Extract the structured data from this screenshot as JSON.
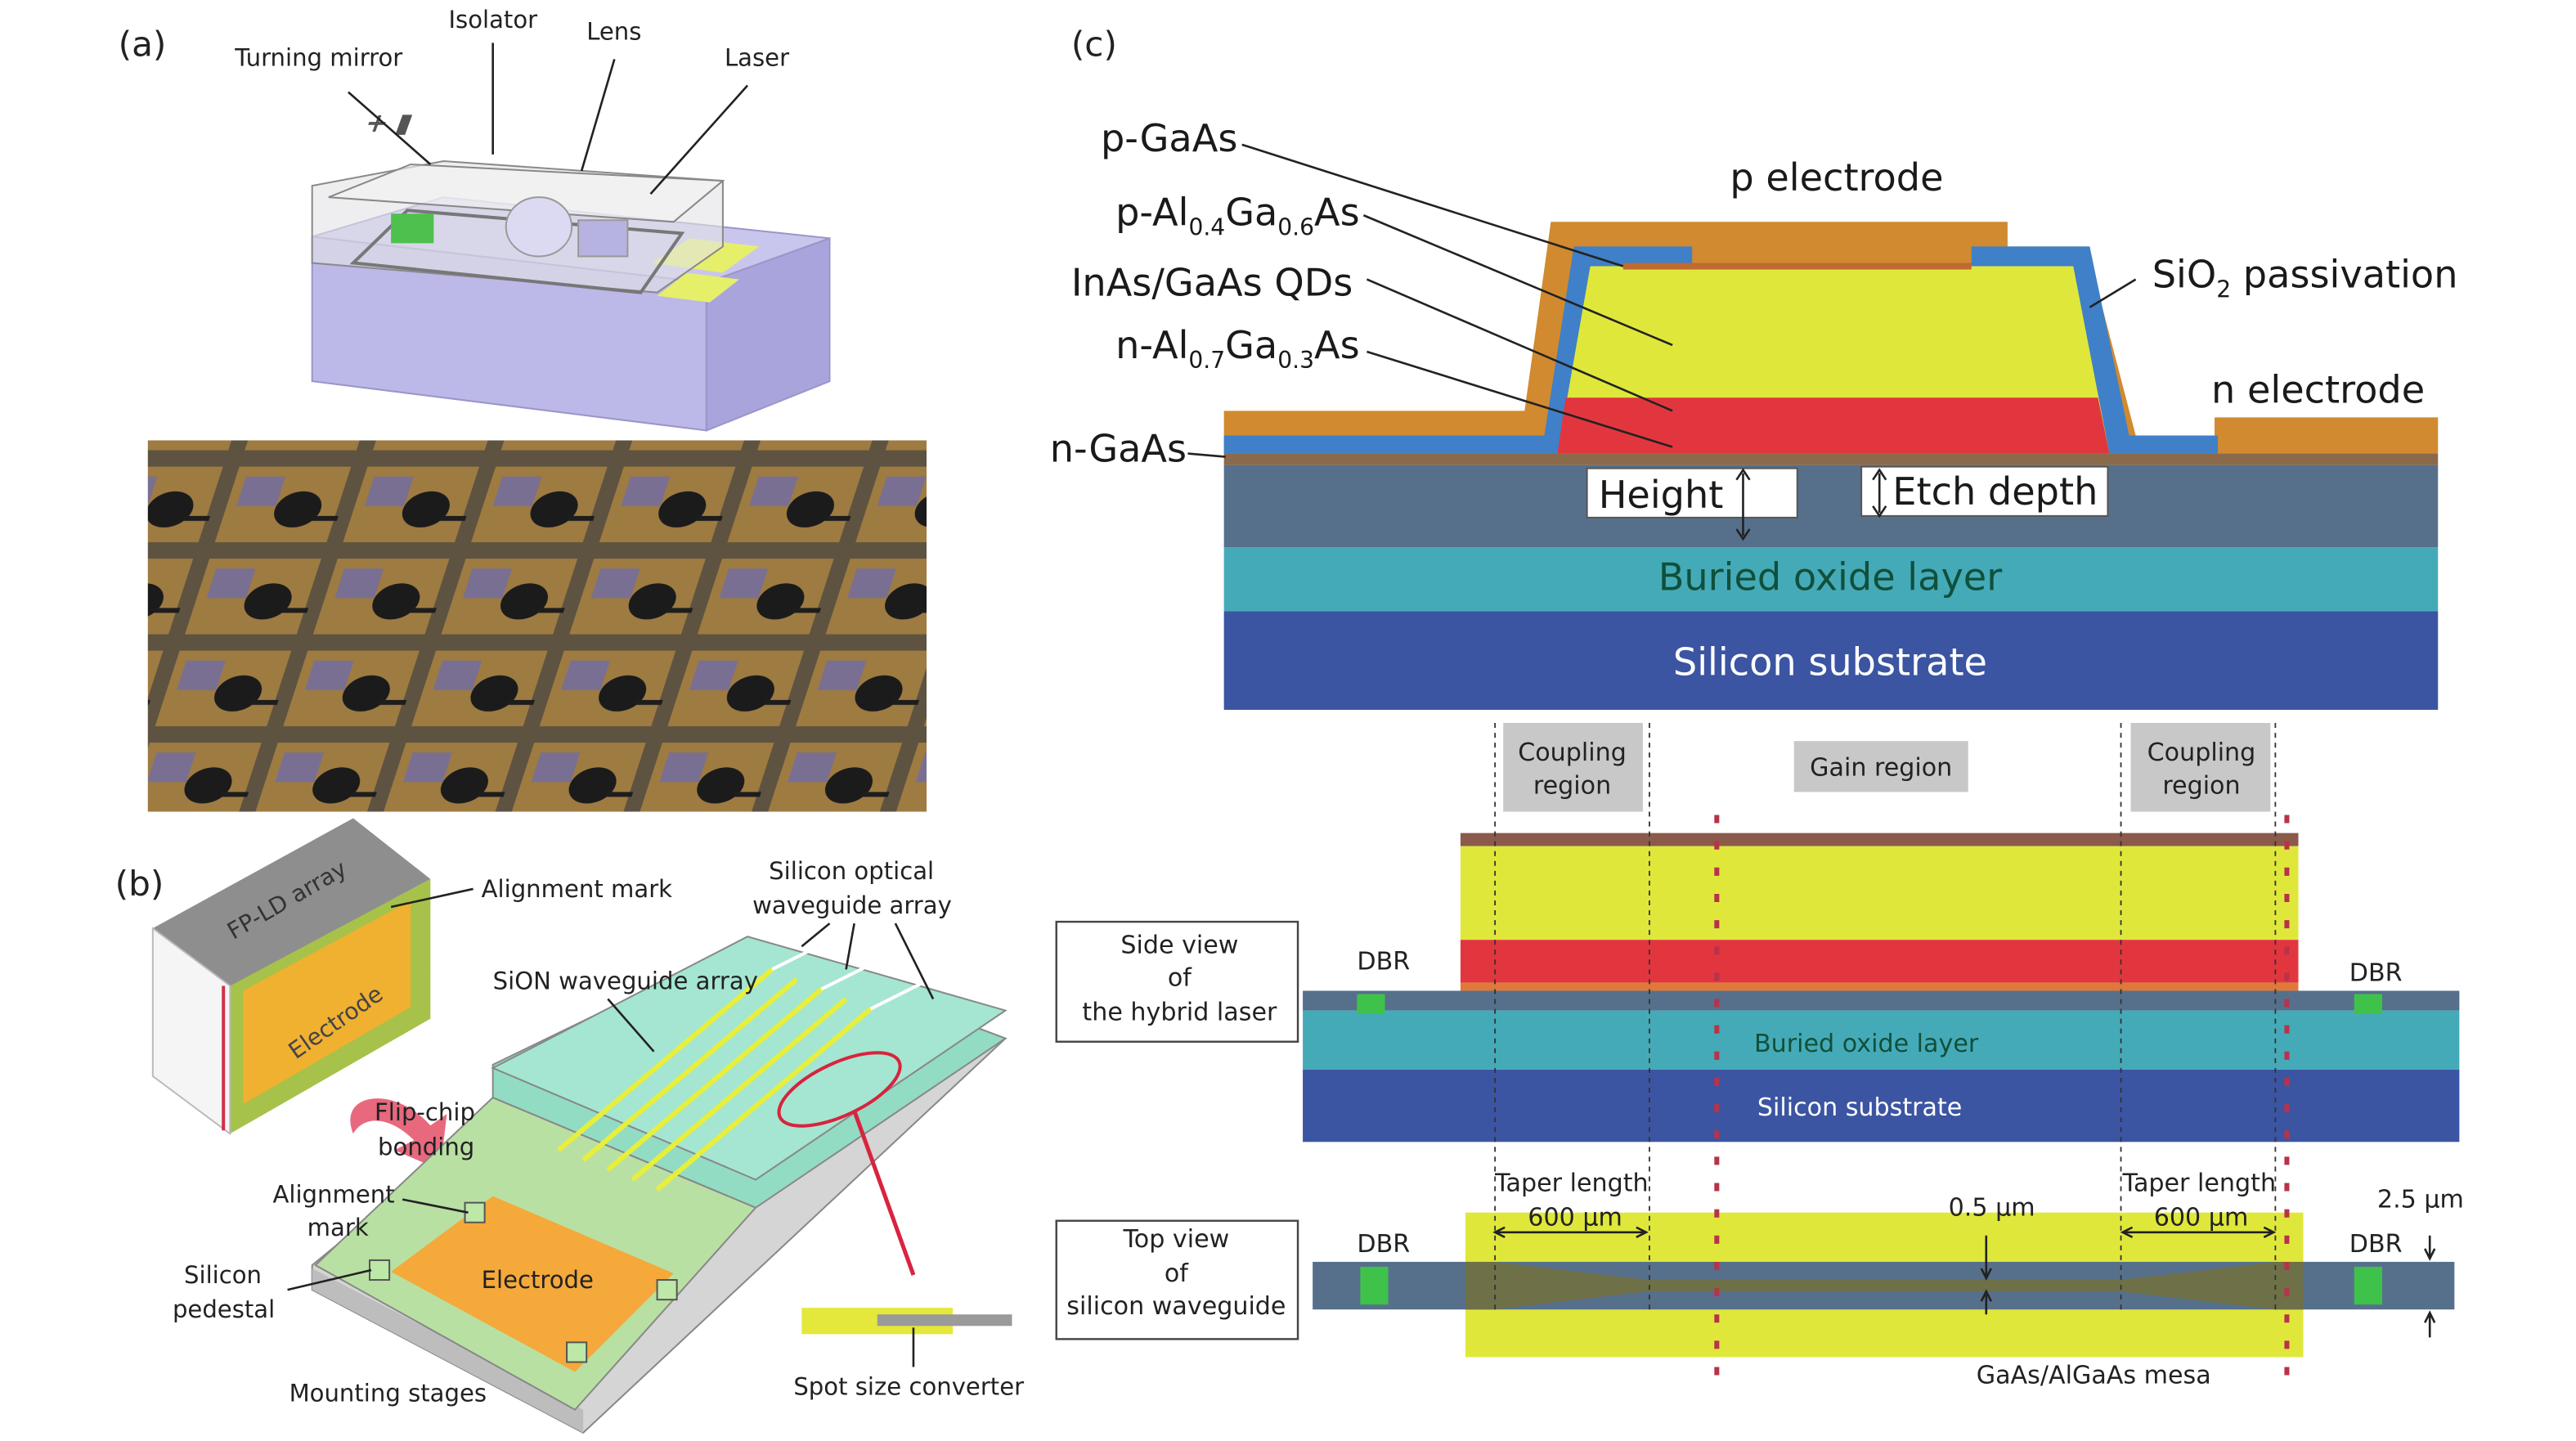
{
  "panel_a": {
    "label": "(a)",
    "callouts": [
      "Turning mirror",
      "Isolator",
      "Lens",
      "Laser"
    ]
  },
  "panel_b": {
    "label": "(b)",
    "chip_label": "FP-LD array",
    "chip_electrode": "Electrode",
    "callouts": {
      "alignment_mark_top": "Alignment mark",
      "silicon_optical_waveguide_array_1": "Silicon optical",
      "silicon_optical_waveguide_array_2": "waveguide array",
      "sion_waveguide_array": "SiON waveguide array",
      "flip_chip_1": "Flip-chip",
      "flip_chip_2": "bonding",
      "alignment_mark_1": "Alignment",
      "alignment_mark_2": "mark",
      "silicon_pedestal_1": "Silicon",
      "silicon_pedestal_2": "pedestal",
      "electrode": "Electrode",
      "mounting_stages": "Mounting stages",
      "spot_size_converter": "Spot size converter"
    }
  },
  "panel_c": {
    "label": "(c)",
    "cross_section": {
      "p_gaas": "p-GaAs",
      "p_algaas": {
        "base": "p-Al",
        "s1": "0.4",
        "mid": "Ga",
        "s2": "0.6",
        "end": "As"
      },
      "qds": "InAs/GaAs QDs",
      "n_algaas": {
        "base": "n-Al",
        "s1": "0.7",
        "mid": "Ga",
        "s2": "0.3",
        "end": "As"
      },
      "n_gaas": "n-GaAs",
      "p_electrode": "p electrode",
      "sio2": {
        "base": "SiO",
        "sub": "2",
        "end": " passivation"
      },
      "n_electrode": "n electrode",
      "height": "Height",
      "etch_depth": "Etch depth",
      "buried_oxide": "Buried oxide layer",
      "silicon_substrate": "Silicon substrate"
    },
    "regions": {
      "coupling_1": "Coupling",
      "coupling_2": "region",
      "gain": "Gain region"
    },
    "side_view": {
      "box_1": "Side view",
      "box_2": "of",
      "box_3": "the hybrid laser",
      "dbr_left": "DBR",
      "dbr_right": "DBR",
      "buried_oxide": "Buried oxide layer",
      "silicon_substrate": "Silicon substrate"
    },
    "top_view": {
      "box_1": "Top view",
      "box_2": "of",
      "box_3": "silicon waveguide",
      "dbr_left": "DBR",
      "dbr_right": "DBR",
      "taper_label": "Taper length",
      "taper_value": "600 µm",
      "narrow_width": "0.5 µm",
      "wide_width": "2.5 µm",
      "mesa": "GaAs/AlGaAs mesa"
    }
  },
  "colors": {
    "yellow": "#dfe83a",
    "red": "#e2363f",
    "orange": "#d18a2f",
    "blue_passivation": "#3f80c8",
    "slab": "#56708c",
    "buried_oxide": "#45aab8",
    "substrate": "#3b55a2",
    "dbr_green": "#3fc24a",
    "purple_base": "#b9b5e6",
    "region_box": "#c8c8c8"
  }
}
